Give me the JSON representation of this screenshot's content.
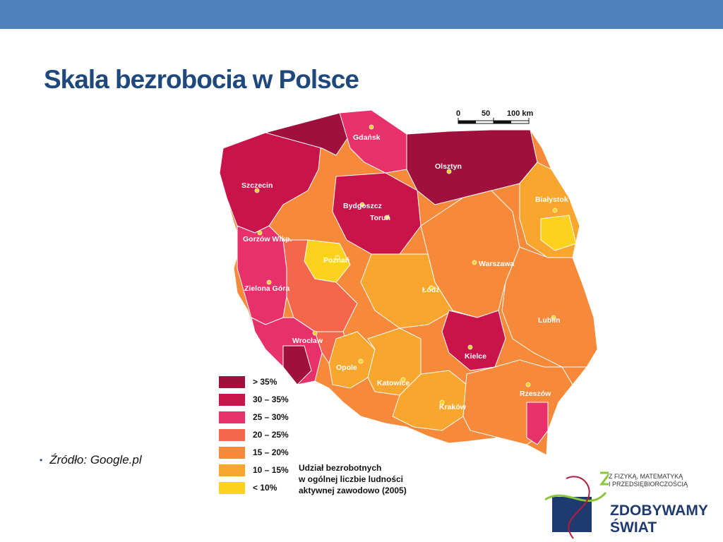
{
  "slide": {
    "title": "Skala bezrobocia w Polsce",
    "source": "Źródło: Google.pl"
  },
  "map": {
    "scale_labels": [
      "0",
      "50",
      "100 km"
    ],
    "cities": [
      "Gdańsk",
      "Olsztyn",
      "Szczecin",
      "Białystok",
      "Bydgoszcz",
      "Toruń",
      "Gorzów Wlkp.",
      "Poznań",
      "Warszawa",
      "Łódź",
      "Zielona Góra",
      "Lublin",
      "Wrocław",
      "Kielce",
      "Opole",
      "Katowice",
      "Rzeszów",
      "Kraków"
    ],
    "legend": [
      {
        "label": "> 35%",
        "color": "#a0103c"
      },
      {
        "label": "30 – 35%",
        "color": "#c8144a"
      },
      {
        "label": "25 – 30%",
        "color": "#e8306a"
      },
      {
        "label": "20 – 25%",
        "color": "#f4674a"
      },
      {
        "label": "15 – 20%",
        "color": "#f7893a"
      },
      {
        "label": "10 – 15%",
        "color": "#f8a62e"
      },
      {
        "label": "< 10%",
        "color": "#fcd21c"
      }
    ],
    "legend_title_lines": [
      "Udział bezrobotnych",
      "w ogólnej liczbie ludności",
      "aktywnej zawodowo (2005)"
    ]
  },
  "logo": {
    "line1": "Z FIZYKĄ, MATEMATYKĄ",
    "line2": "I PRZEDSIĘBIORCZOŚCIĄ",
    "line3": "ZDOBYWAMY",
    "line4": "ŚWIAT"
  },
  "colors": {
    "bar": "#4f81bd",
    "title": "#1f497d"
  }
}
